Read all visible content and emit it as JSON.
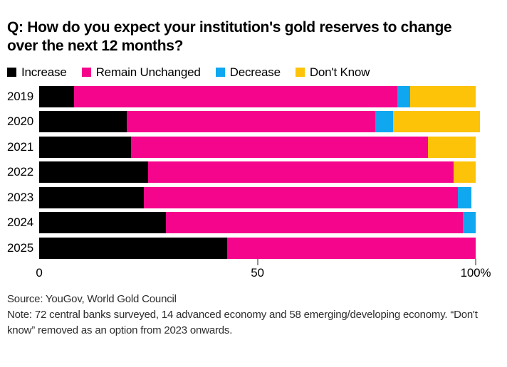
{
  "title": "Q: How do you expect your institution's gold reserves to change\nover the next 12 months?",
  "legend": {
    "items": [
      {
        "label": "Increase",
        "color": "#000000"
      },
      {
        "label": "Remain Unchanged",
        "color": "#f5058c"
      },
      {
        "label": "Decrease",
        "color": "#0ea7f0"
      },
      {
        "label": "Don't Know",
        "color": "#fdc309"
      }
    ]
  },
  "chart_data": {
    "type": "bar",
    "stacked": true,
    "orientation": "horizontal",
    "title": "Q: How do you expect your institution's gold reserves to change over the next 12 months?",
    "categories": [
      "2019",
      "2020",
      "2021",
      "2022",
      "2023",
      "2024",
      "2025"
    ],
    "series": [
      {
        "name": "Increase",
        "color": "#000000",
        "values": [
          8,
          20,
          21,
          25,
          24,
          29,
          43
        ]
      },
      {
        "name": "Remain Unchanged",
        "color": "#f5058c",
        "values": [
          74,
          57,
          68,
          70,
          72,
          68,
          57
        ]
      },
      {
        "name": "Decrease",
        "color": "#0ea7f0",
        "values": [
          3,
          4,
          0,
          0,
          3,
          3,
          0
        ]
      },
      {
        "name": "Don't Know",
        "color": "#fdc309",
        "values": [
          15,
          20,
          11,
          5,
          0,
          0,
          0
        ]
      }
    ],
    "xlim": [
      0,
      100
    ],
    "x_ticks": [
      {
        "label": "0",
        "value": 0,
        "tick": false
      },
      {
        "label": "50",
        "value": 50,
        "tick": true
      },
      {
        "label": "100%",
        "value": 100,
        "tick": true
      }
    ],
    "legend_position": "top",
    "grid": false
  },
  "footer": {
    "source": "Source: YouGov, World Gold Council",
    "note": "Note: 72 central banks surveyed, 14 advanced economy and 58 emerging/developing economy. “Don't\nknow” removed as an option from 2023 onwards."
  }
}
